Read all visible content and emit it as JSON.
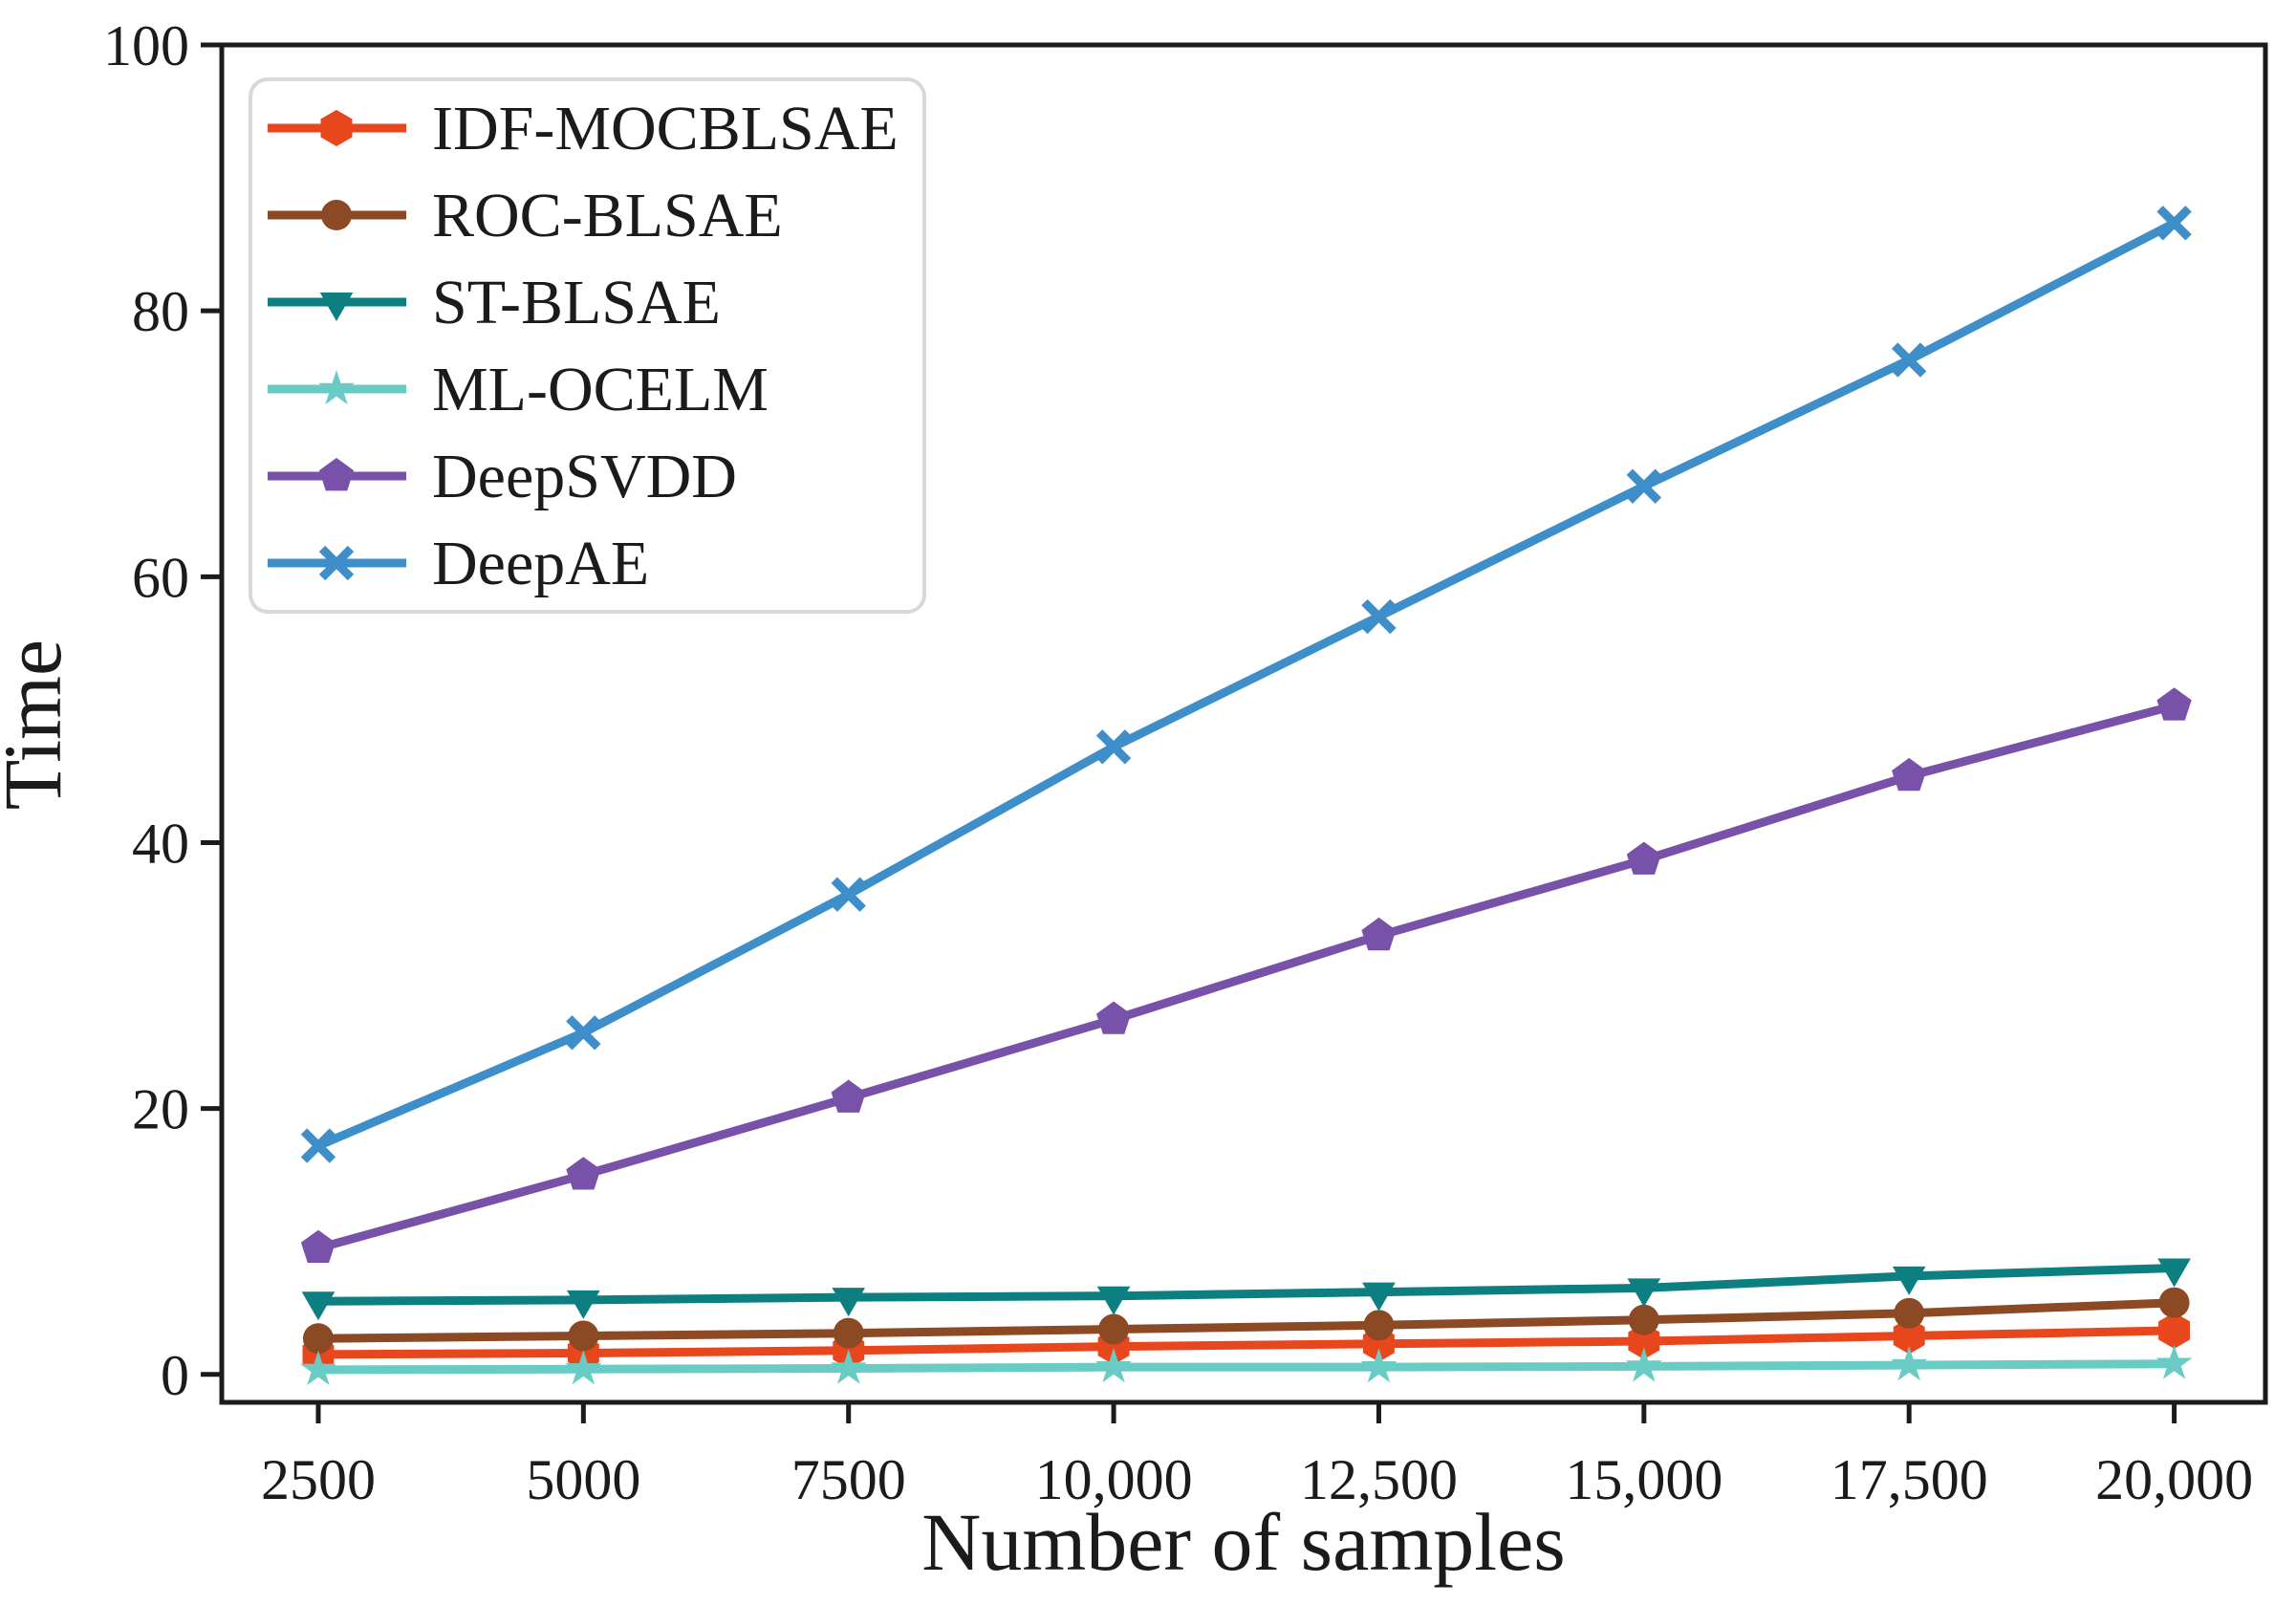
{
  "figure": {
    "background": "#ffffff",
    "axis_color": "#1b1b1b",
    "legend_border_color": "#d8d8d8",
    "legend_background": "#ffffff"
  },
  "chart_data": {
    "type": "line",
    "title": "",
    "xlabel": "Number of samples",
    "ylabel": "Time",
    "x": [
      2500,
      5000,
      7500,
      10000,
      12500,
      15000,
      17500,
      20000
    ],
    "x_tick_labels": [
      "2500",
      "5000",
      "7500",
      "10,000",
      "12,500",
      "15,000",
      "17,500",
      "20,000"
    ],
    "y_ticks": [
      0,
      20,
      40,
      60,
      80,
      100
    ],
    "y_tick_labels": [
      "0",
      "20",
      "40",
      "60",
      "80",
      "100"
    ],
    "xlim": [
      1590,
      20860
    ],
    "ylim": [
      -2.1,
      100
    ],
    "grid": false,
    "legend_position": "upper-left",
    "series": [
      {
        "name": "IDF-MOCBLSAE",
        "color": "#E8471D",
        "marker": "hexagon",
        "values": [
          1.5,
          1.6,
          1.8,
          2.1,
          2.3,
          2.5,
          2.9,
          3.3
        ]
      },
      {
        "name": "ROC-BLSAE",
        "color": "#8B4A24",
        "marker": "circle",
        "values": [
          2.7,
          2.9,
          3.1,
          3.4,
          3.7,
          4.1,
          4.6,
          5.4
        ]
      },
      {
        "name": "ST-BLSAE",
        "color": "#0E7F80",
        "marker": "triangle-down",
        "values": [
          5.5,
          5.6,
          5.8,
          5.9,
          6.2,
          6.5,
          7.4,
          8.0
        ]
      },
      {
        "name": "ML-OCELM",
        "color": "#68CCC4",
        "marker": "star",
        "values": [
          0.35,
          0.4,
          0.45,
          0.55,
          0.55,
          0.6,
          0.7,
          0.8
        ]
      },
      {
        "name": "DeepSVDD",
        "color": "#7852A9",
        "marker": "pentagon",
        "values": [
          9.5,
          15.0,
          20.8,
          26.7,
          33.0,
          38.7,
          45.0,
          50.3
        ]
      },
      {
        "name": "DeepAE",
        "color": "#3E8EC9",
        "marker": "x",
        "values": [
          17.2,
          25.7,
          36.1,
          47.2,
          57.0,
          66.8,
          76.3,
          86.6
        ]
      }
    ]
  }
}
